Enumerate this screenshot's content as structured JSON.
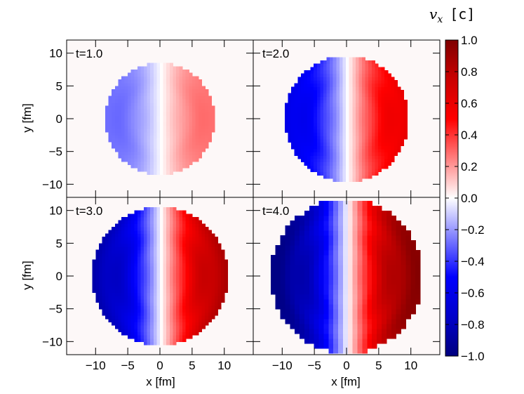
{
  "chart_data": {
    "type": "heatmap",
    "colorbar": {
      "symbol": "v",
      "subscript": "x",
      "unit": "[c]",
      "range": [
        -1.0,
        1.0
      ],
      "ticks": [
        "1.0",
        "0.8",
        "0.6",
        "0.4",
        "0.2",
        "0.0",
        "−0.2",
        "−0.4",
        "−0.6",
        "−0.8",
        "−1.0"
      ],
      "tick_values": [
        1.0,
        0.8,
        0.6,
        0.4,
        0.2,
        0.0,
        -0.2,
        -0.4,
        -0.6,
        -0.8,
        -1.0
      ],
      "colormap": "seismic",
      "colors": {
        "negative": "#00007f",
        "zero": "#ffffff",
        "positive": "#7f0000"
      }
    },
    "xlabel": "x [fm]",
    "ylabel": "y [fm]",
    "xlim": [
      -14.5,
      14.5
    ],
    "ylim": [
      -12,
      12
    ],
    "x_ticks": [
      "−10",
      "−5",
      "0",
      "5",
      "10"
    ],
    "x_tick_values": [
      -10,
      -5,
      0,
      5,
      10
    ],
    "y_ticks": [
      "10",
      "5",
      "0",
      "−5",
      "−10"
    ],
    "y_tick_values": [
      10,
      5,
      0,
      -5,
      -10
    ],
    "panels": [
      {
        "label": "t=1.0",
        "time": 1.0,
        "radius": 8.5,
        "max_abs_vx": 0.3
      },
      {
        "label": "t=2.0",
        "time": 2.0,
        "radius": 9.6,
        "max_abs_vx": 0.6
      },
      {
        "label": "t=3.0",
        "time": 3.0,
        "radius": 10.5,
        "max_abs_vx": 0.8
      },
      {
        "label": "t=4.0",
        "time": 4.0,
        "radius": 11.8,
        "max_abs_vx": 0.95
      }
    ]
  }
}
